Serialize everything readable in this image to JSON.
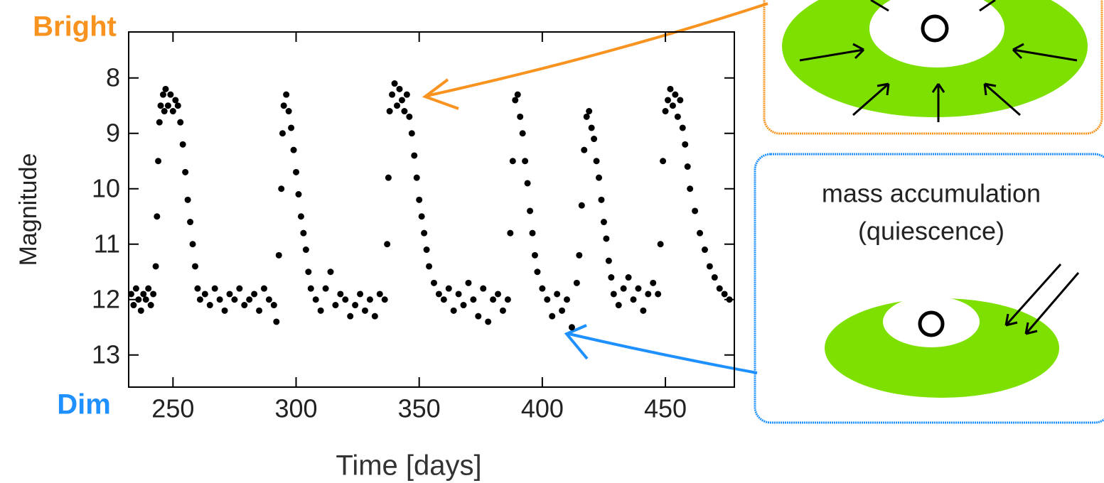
{
  "chart_data": {
    "type": "scatter",
    "x_label": "Time [days]",
    "y_label": "Magnitude",
    "annotations": {
      "bright": "Bright",
      "dim": "Dim"
    },
    "color": "#000000",
    "x": [
      233,
      234,
      235,
      236,
      237,
      238,
      239,
      240,
      241,
      242,
      243,
      243.5,
      244,
      244.5,
      245,
      246,
      246.5,
      247,
      248,
      249,
      250,
      251,
      252,
      253,
      254,
      255,
      256,
      257,
      258,
      259,
      260,
      261,
      263,
      265,
      267,
      269,
      271,
      273,
      275,
      277,
      279,
      281,
      283,
      285,
      287,
      289,
      291,
      292,
      293,
      294,
      294.5,
      295,
      296,
      297,
      298,
      299,
      300,
      301,
      302,
      303,
      304,
      305,
      306,
      308,
      310,
      312,
      314,
      316,
      318,
      320,
      322,
      324,
      326,
      328,
      330,
      332,
      334,
      336,
      337,
      337.5,
      338,
      339,
      340,
      341,
      342,
      343,
      344,
      345,
      346,
      347,
      348,
      349,
      350,
      351,
      352,
      353,
      354,
      356,
      358,
      360,
      362,
      364,
      366,
      368,
      370,
      372,
      374,
      376,
      378,
      380,
      382,
      384,
      386,
      387,
      388,
      389,
      390,
      391,
      392,
      393,
      394,
      395,
      396,
      397,
      398,
      400,
      402,
      404,
      406,
      408,
      410,
      412,
      414,
      415,
      416,
      417,
      418,
      419,
      420,
      421,
      422,
      423,
      424,
      425,
      426,
      427,
      428,
      429,
      431,
      433,
      435,
      437,
      439,
      441,
      443,
      445,
      447,
      448,
      449,
      450,
      451,
      452,
      453,
      454,
      455,
      456,
      457,
      458,
      459,
      460,
      462,
      464,
      466,
      468,
      470,
      472,
      474,
      476
    ],
    "values": [
      11.9,
      12.1,
      11.8,
      12.0,
      12.2,
      11.9,
      12.0,
      11.8,
      12.1,
      11.9,
      11.4,
      10.5,
      9.5,
      8.8,
      8.5,
      8.3,
      8.6,
      8.2,
      8.5,
      8.3,
      8.6,
      8.4,
      8.5,
      8.8,
      9.2,
      9.7,
      10.2,
      10.6,
      11.0,
      11.4,
      11.8,
      12.0,
      11.9,
      12.1,
      11.8,
      12.0,
      12.2,
      11.9,
      12.0,
      11.8,
      12.1,
      12.0,
      11.9,
      12.2,
      11.8,
      12.0,
      12.1,
      12.4,
      11.2,
      10.0,
      9.0,
      8.5,
      8.3,
      8.6,
      8.9,
      9.3,
      9.7,
      10.1,
      10.5,
      10.8,
      11.1,
      11.5,
      11.8,
      12.0,
      12.2,
      11.8,
      11.5,
      12.1,
      11.9,
      12.0,
      12.3,
      12.1,
      11.9,
      12.2,
      12.0,
      12.3,
      11.9,
      12.0,
      11.0,
      9.8,
      8.6,
      8.3,
      8.1,
      8.5,
      8.2,
      8.4,
      8.6,
      8.3,
      8.7,
      9.0,
      9.4,
      9.8,
      10.2,
      10.5,
      10.8,
      11.1,
      11.4,
      11.7,
      11.9,
      12.0,
      11.8,
      12.2,
      11.9,
      12.1,
      11.7,
      12.0,
      12.3,
      11.8,
      12.4,
      12.0,
      11.9,
      12.2,
      12.0,
      10.8,
      9.5,
      8.4,
      8.3,
      8.7,
      9.0,
      9.5,
      9.9,
      10.4,
      10.8,
      11.2,
      11.5,
      11.8,
      12.0,
      12.3,
      11.9,
      12.2,
      12.0,
      12.5,
      11.7,
      11.2,
      10.3,
      9.3,
      8.7,
      8.6,
      8.9,
      9.1,
      9.5,
      9.8,
      10.2,
      10.6,
      10.9,
      11.3,
      11.6,
      11.9,
      12.1,
      11.8,
      11.6,
      12.0,
      11.8,
      12.2,
      11.9,
      11.7,
      11.9,
      11.0,
      9.5,
      8.6,
      8.4,
      8.2,
      8.5,
      8.3,
      8.7,
      8.4,
      8.9,
      9.2,
      9.6,
      10.0,
      10.4,
      10.8,
      11.1,
      11.4,
      11.6,
      11.8,
      11.9,
      12.0
    ],
    "xlim": [
      232,
      478
    ],
    "ylim": [
      13.58,
      7.17
    ],
    "xticks": [
      250,
      300,
      350,
      400,
      450
    ],
    "yticks": [
      8,
      9,
      10,
      11,
      12,
      13
    ]
  },
  "diagram": {
    "texts": [
      "mass accumulation",
      "(quiescence)"
    ]
  }
}
